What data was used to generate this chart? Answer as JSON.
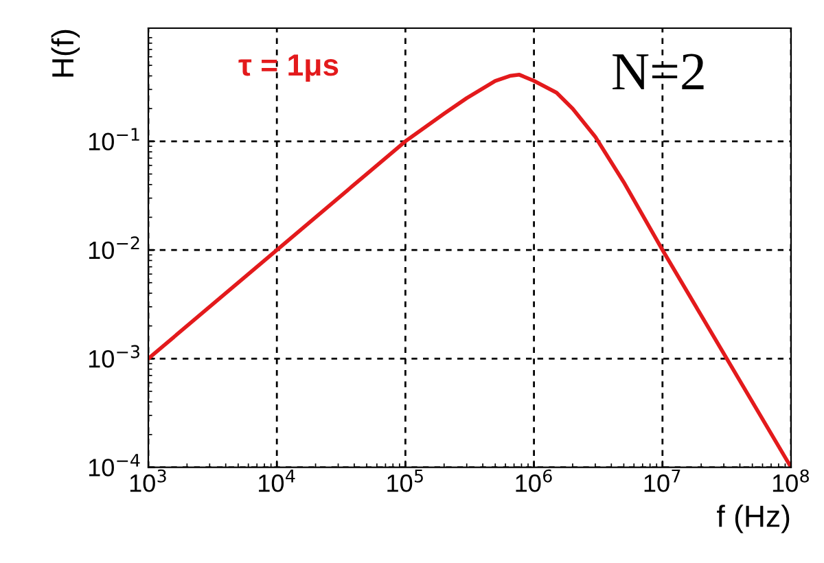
{
  "chart_data": {
    "type": "line",
    "xlabel": "f (Hz)",
    "ylabel": "H(f)",
    "log": "xy",
    "grid": true,
    "xlim": [
      1000,
      100000000
    ],
    "ylim": [
      0.0001,
      1.1
    ],
    "xticks": [
      {
        "value": 1000,
        "label": "10$^{3}$"
      },
      {
        "value": 10000,
        "label": "10$^{4}$"
      },
      {
        "value": 100000,
        "label": "10$^{5}$"
      },
      {
        "value": 1000000,
        "label": "10$^{6}$"
      },
      {
        "value": 10000000,
        "label": "10$^{7}$"
      },
      {
        "value": 100000000,
        "label": "10$^{8}$"
      }
    ],
    "yticks": [
      {
        "value": 0.0001,
        "label": "10$^{−4}$"
      },
      {
        "value": 0.001,
        "label": "10$^{−3}$"
      },
      {
        "value": 0.01,
        "label": "10$^{−2}$"
      },
      {
        "value": 0.1,
        "label": "10$^{−1}$"
      }
    ],
    "annotations": [
      "τ = 1μs",
      "N=2"
    ],
    "series": [
      {
        "color": "#e31a1c",
        "line_style": "solid",
        "x": [
          1000,
          10000,
          100000,
          200000,
          300000,
          500000,
          650000,
          770000,
          1000000,
          1500000,
          2000000,
          3000000,
          5000000,
          10000000,
          20000000,
          50000000,
          100000000
        ],
        "values": [
          0.001,
          0.01,
          0.1,
          0.18,
          0.25,
          0.36,
          0.4,
          0.41,
          0.36,
          0.28,
          0.2,
          0.11,
          0.042,
          0.01,
          0.0025,
          0.0004,
          0.0001
        ]
      }
    ]
  }
}
